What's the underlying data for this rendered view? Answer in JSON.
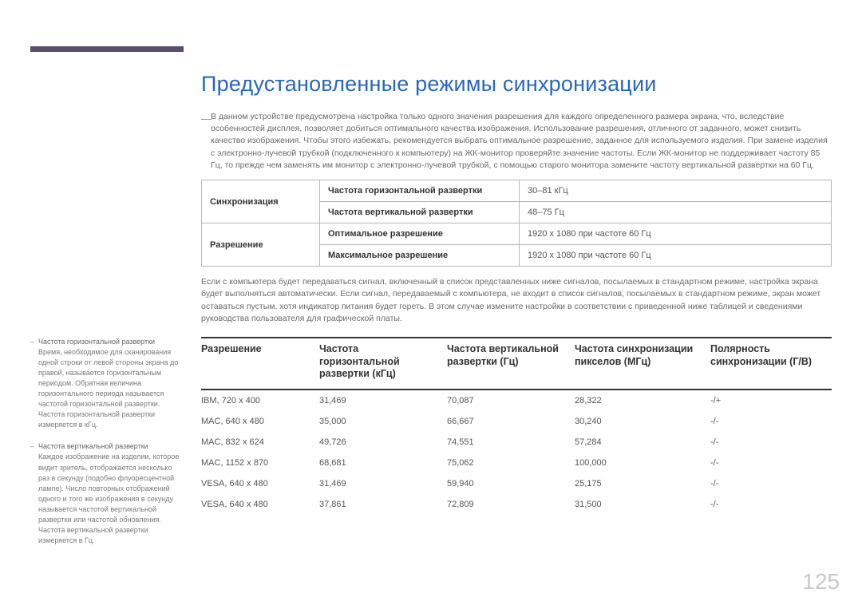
{
  "title": "Предустановленные режимы синхронизации",
  "intro": "В данном устройстве предусмотрена настройка только одного значения разрешения для каждого определенного размера экрана, что, вследствие особенностей дисплея, позволяет добиться оптимального качества изображения. Использование разрешения, отличного от заданного, может снизить качество изображения. Чтобы этого избежать, рекомендуется выбрать оптимальное разрешение, заданное для используемого изделия. При замене изделия с электронно-лучевой трубкой (подключенного к компьютеру) на ЖК-монитор проверяйте значение частоты. Если ЖК-монитор не поддерживает частоту 85 Гц, то прежде чем заменять им монитор с электронно-лучевой трубкой, с помощью старого монитора замените частоту вертикальной развертки на 60 Гц.",
  "spec": {
    "sync_label": "Синхронизация",
    "hfreq_label": "Частота горизонтальной развертки",
    "hfreq_value": "30–81 кГц",
    "vfreq_label": "Частота вертикальной развертки",
    "vfreq_value": "48–75 Гц",
    "res_label": "Разрешение",
    "opt_label": "Оптимальное разрешение",
    "opt_value": "1920 x 1080 при частоте 60 Гц",
    "max_label": "Максимальное разрешение",
    "max_value": "1920 x 1080 при частоте 60 Гц"
  },
  "mid": "Если с компьютера будет передаваться сигнал, включенный в список представленных ниже сигналов, посылаемых в стандартном режиме, настройка экрана будет выполняться автоматически. Если сигнал, передаваемый с компьютера, не входит в список сигналов, посылаемых в стандартном режиме, экран может оставаться пустым, хотя индикатор питания будет гореть. В этом случае измените настройки в соответствии с приведенной ниже таблицей и сведениями руководства пользователя для графической платы.",
  "headers": {
    "c0": "Разрешение",
    "c1": "Частота горизонтальной развертки (кГц)",
    "c2": "Частота вертикальной развертки (Гц)",
    "c3": "Частота синхронизации пикселов (МГц)",
    "c4": "Полярность синхронизации (Г/В)"
  },
  "rows": [
    {
      "c0": "IBM, 720 x 400",
      "c1": "31,469",
      "c2": "70,087",
      "c3": "28,322",
      "c4": "-/+"
    },
    {
      "c0": "MAC, 640 x 480",
      "c1": "35,000",
      "c2": "66,667",
      "c3": "30,240",
      "c4": "-/-"
    },
    {
      "c0": "MAC, 832 x 624",
      "c1": "49,726",
      "c2": "74,551",
      "c3": "57,284",
      "c4": "-/-"
    },
    {
      "c0": "MAC, 1152 x 870",
      "c1": "68,681",
      "c2": "75,062",
      "c3": "100,000",
      "c4": "-/-"
    },
    {
      "c0": "VESA, 640 x 480",
      "c1": "31,469",
      "c2": "59,940",
      "c3": "25,175",
      "c4": "-/-"
    },
    {
      "c0": "VESA, 640 x 480",
      "c1": "37,861",
      "c2": "72,809",
      "c3": "31,500",
      "c4": "-/-"
    }
  ],
  "sidebar": {
    "a_title": "Частота горизонтальной развертки",
    "a_body": "Время, необходимое для сканирования одной строки от левой стороны экрана до правой, называется горизонтальным периодом. Обратная величина горизонтального периода называется частотой горизонтальной развертки. Частота горизонтальной развертки измеряется в кГц.",
    "b_title": "Частота вертикальной развертки",
    "b_body": "Каждое изображение на изделии, которое видит зритель, отображается несколько раз в секунду (подобно флуоресцентной лампе). Число повторных отображений одного и того же изображения в секунду называется частотой вертикальной развертки или частотой обновления. Частота вертикальной развертки измеряется в Гц."
  },
  "page": "125"
}
